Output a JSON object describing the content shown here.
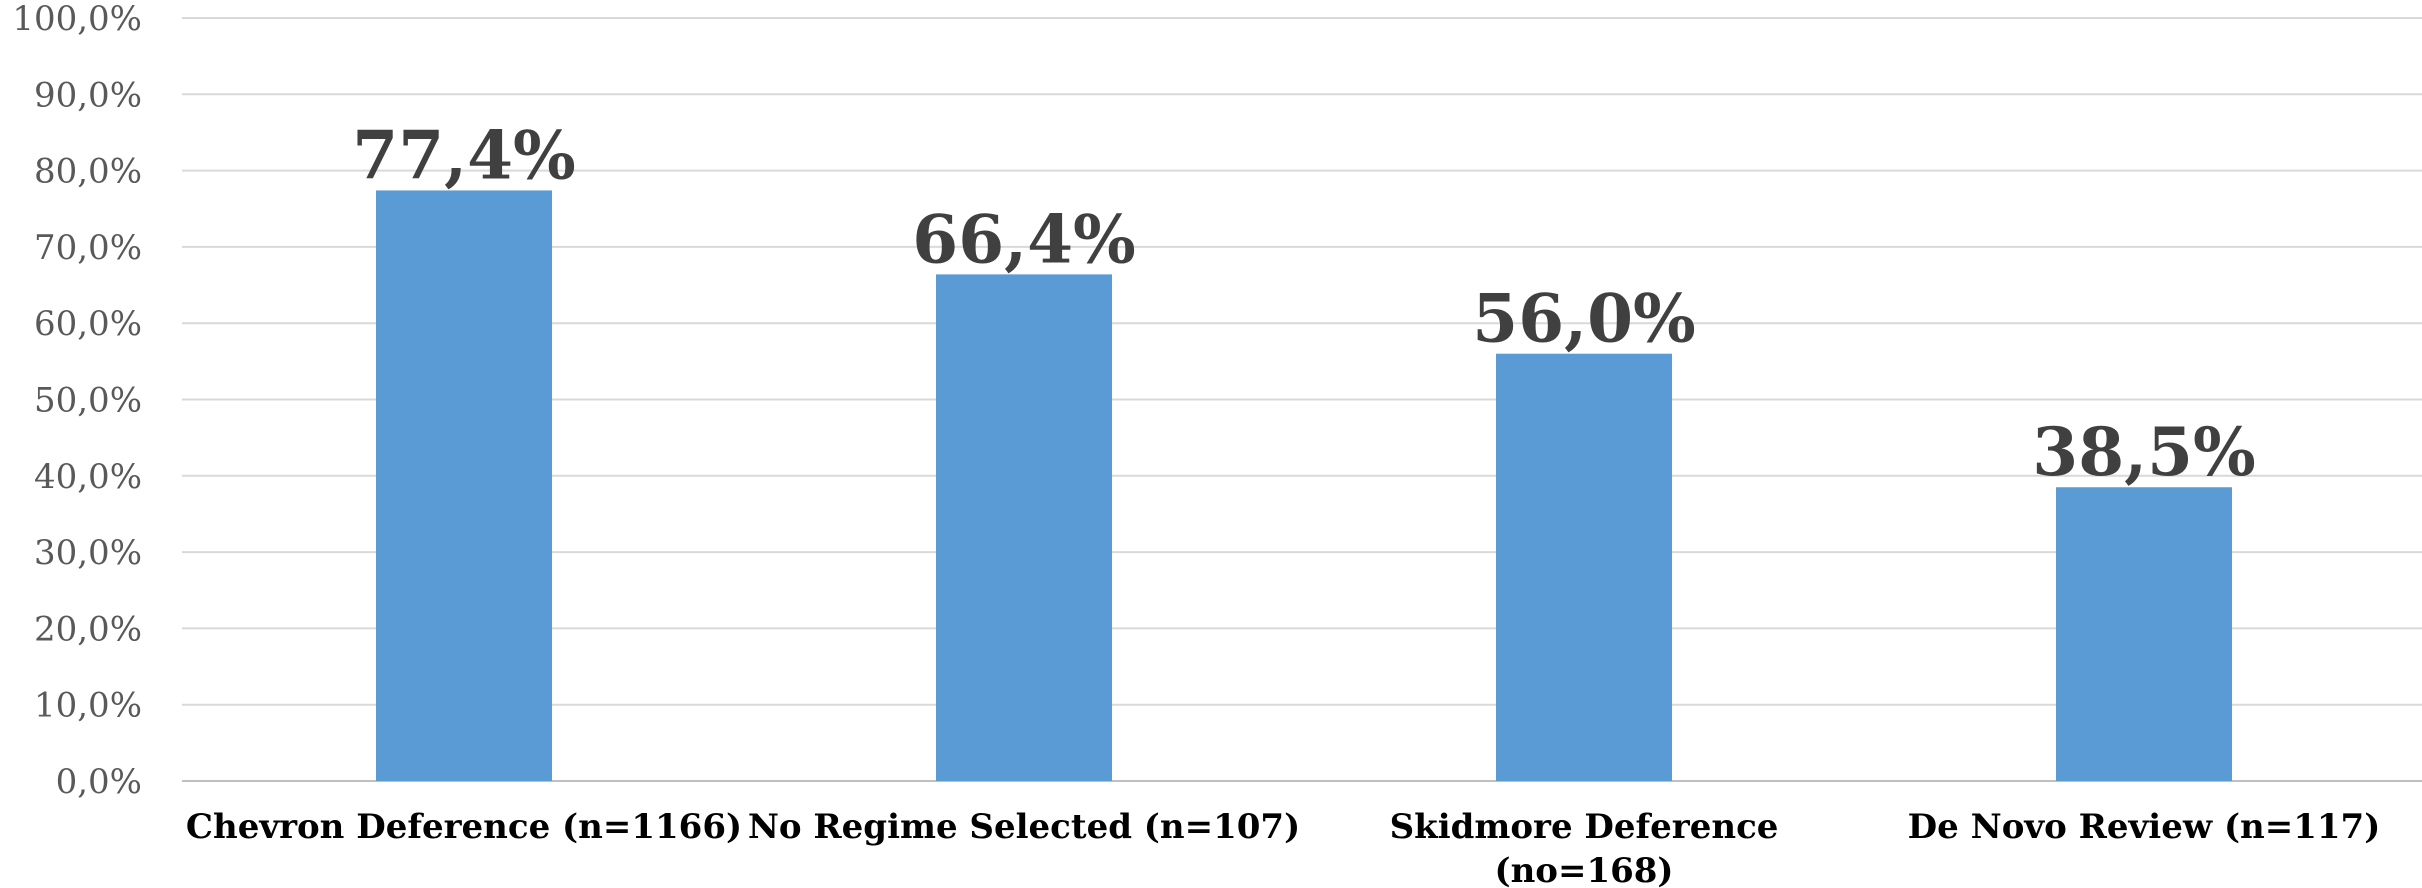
{
  "colors": {
    "bar": "#5b9bd5",
    "gridline": "#d9d9d9",
    "tick_text": "#595959",
    "category_text": "#000000",
    "data_label_text": "#404040"
  },
  "chart_data": {
    "type": "bar",
    "categories": [
      [
        "Chevron Deference (n=1166)"
      ],
      [
        "No Regime Selected (n=107)"
      ],
      [
        "Skidmore Deference",
        "(no=168)"
      ],
      [
        "De Novo Review (n=117)"
      ]
    ],
    "values": [
      77.4,
      66.4,
      56.0,
      38.5
    ],
    "data_labels": [
      "77,4%",
      "66,4%",
      "56,0%",
      "38,5%"
    ],
    "ylim": [
      0,
      100
    ],
    "ytick_values": [
      0,
      10,
      20,
      30,
      40,
      50,
      60,
      70,
      80,
      90,
      100
    ],
    "ytick_labels": [
      "0,0%",
      "10,0%",
      "20,0%",
      "30,0%",
      "40,0%",
      "50,0%",
      "60,0%",
      "70,0%",
      "80,0%",
      "90,0%",
      "100,0%"
    ],
    "grid": true,
    "legend": "none",
    "title": "",
    "xlabel": "",
    "ylabel": ""
  }
}
